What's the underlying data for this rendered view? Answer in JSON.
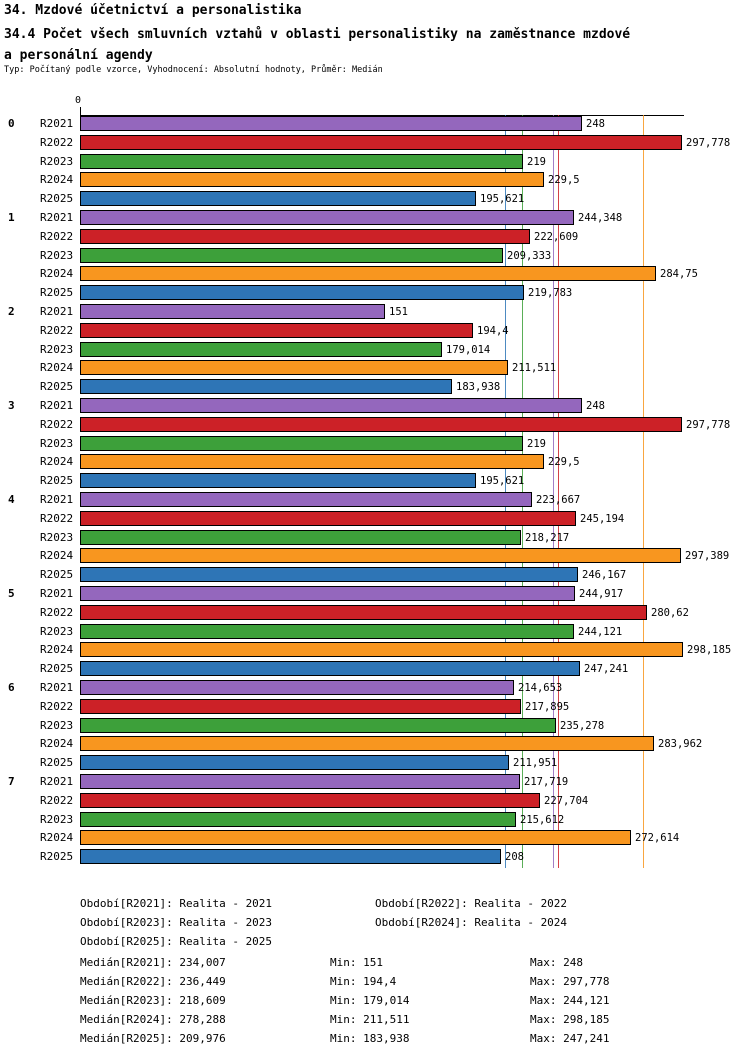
{
  "chart_data": {
    "type": "bar",
    "orientation": "horizontal",
    "title": "34. Mzdové účetnictví a personalistika",
    "subtitle": "34.4 Počet všech smluvních vztahů v oblasti personalistiky na zaměstnance mzdové a personální agendy",
    "meta": "Typ: Počítaný podle vzorce, Vyhodnocení: Absolutní hodnoty, Průměr: Medián",
    "x_axis": {
      "origin_tick_label": "0",
      "min": 0
    },
    "xlim": [
      0,
      300
    ],
    "grid": false,
    "legend_position": "bottom",
    "series": [
      {
        "name": "R2021",
        "color": "#9467bd",
        "median": 234.007,
        "legend": "Období[R2021]: Realita - 2021",
        "median_display": "Medián[R2021]: 234,007",
        "min_display": "Min: 151",
        "max_display": "Max: 248"
      },
      {
        "name": "R2022",
        "color": "#cc2127",
        "median": 236.449,
        "legend": "Období[R2022]: Realita - 2022",
        "median_display": "Medián[R2022]: 236,449",
        "min_display": "Min: 194,4",
        "max_display": "Max: 297,778"
      },
      {
        "name": "R2023",
        "color": "#3da03a",
        "median": 218.609,
        "legend": "Období[R2023]: Realita - 2023",
        "median_display": "Medián[R2023]: 218,609",
        "min_display": "Min: 179,014",
        "max_display": "Max: 244,121"
      },
      {
        "name": "R2024",
        "color": "#f8961f",
        "median": 278.288,
        "legend": "Období[R2024]: Realita - 2024",
        "median_display": "Medián[R2024]: 278,288",
        "min_display": "Min: 211,511",
        "max_display": "Max: 298,185"
      },
      {
        "name": "R2025",
        "color": "#2e75b6",
        "median": 209.976,
        "legend": "Období[R2025]: Realita - 2025",
        "median_display": "Medián[R2025]: 209,976",
        "min_display": "Min: 183,938",
        "max_display": "Max: 247,241"
      }
    ],
    "groups": [
      {
        "label": "0",
        "bars": [
          {
            "series": "R2021",
            "value": 248,
            "display": "248"
          },
          {
            "series": "R2022",
            "value": 297.778,
            "display": "297,778"
          },
          {
            "series": "R2023",
            "value": 219,
            "display": "219"
          },
          {
            "series": "R2024",
            "value": 229.5,
            "display": "229,5"
          },
          {
            "series": "R2025",
            "value": 195.621,
            "display": "195,621"
          }
        ]
      },
      {
        "label": "1",
        "bars": [
          {
            "series": "R2021",
            "value": 244.348,
            "display": "244,348"
          },
          {
            "series": "R2022",
            "value": 222.609,
            "display": "222,609"
          },
          {
            "series": "R2023",
            "value": 209.333,
            "display": "209,333"
          },
          {
            "series": "R2024",
            "value": 284.75,
            "display": "284,75"
          },
          {
            "series": "R2025",
            "value": 219.783,
            "display": "219,783"
          }
        ]
      },
      {
        "label": "2",
        "bars": [
          {
            "series": "R2021",
            "value": 151,
            "display": "151"
          },
          {
            "series": "R2022",
            "value": 194.4,
            "display": "194,4"
          },
          {
            "series": "R2023",
            "value": 179.014,
            "display": "179,014"
          },
          {
            "series": "R2024",
            "value": 211.511,
            "display": "211,511"
          },
          {
            "series": "R2025",
            "value": 183.938,
            "display": "183,938"
          }
        ]
      },
      {
        "label": "3",
        "bars": [
          {
            "series": "R2021",
            "value": 248,
            "display": "248"
          },
          {
            "series": "R2022",
            "value": 297.778,
            "display": "297,778"
          },
          {
            "series": "R2023",
            "value": 219,
            "display": "219"
          },
          {
            "series": "R2024",
            "value": 229.5,
            "display": "229,5"
          },
          {
            "series": "R2025",
            "value": 195.621,
            "display": "195,621"
          }
        ]
      },
      {
        "label": "4",
        "bars": [
          {
            "series": "R2021",
            "value": 223.667,
            "display": "223,667"
          },
          {
            "series": "R2022",
            "value": 245.194,
            "display": "245,194"
          },
          {
            "series": "R2023",
            "value": 218.217,
            "display": "218,217"
          },
          {
            "series": "R2024",
            "value": 297.389,
            "display": "297,389"
          },
          {
            "series": "R2025",
            "value": 246.167,
            "display": "246,167"
          }
        ]
      },
      {
        "label": "5",
        "bars": [
          {
            "series": "R2021",
            "value": 244.917,
            "display": "244,917"
          },
          {
            "series": "R2022",
            "value": 280.62,
            "display": "280,62"
          },
          {
            "series": "R2023",
            "value": 244.121,
            "display": "244,121"
          },
          {
            "series": "R2024",
            "value": 298.185,
            "display": "298,185"
          },
          {
            "series": "R2025",
            "value": 247.241,
            "display": "247,241"
          }
        ]
      },
      {
        "label": "6",
        "bars": [
          {
            "series": "R2021",
            "value": 214.653,
            "display": "214,653"
          },
          {
            "series": "R2022",
            "value": 217.895,
            "display": "217,895"
          },
          {
            "series": "R2023",
            "value": 235.278,
            "display": "235,278"
          },
          {
            "series": "R2024",
            "value": 283.962,
            "display": "283,962"
          },
          {
            "series": "R2025",
            "value": 211.951,
            "display": "211,951"
          }
        ]
      },
      {
        "label": "7",
        "bars": [
          {
            "series": "R2021",
            "value": 217.719,
            "display": "217,719"
          },
          {
            "series": "R2022",
            "value": 227.704,
            "display": "227,704"
          },
          {
            "series": "R2023",
            "value": 215.612,
            "display": "215,612"
          },
          {
            "series": "R2024",
            "value": 272.614,
            "display": "272,614"
          },
          {
            "series": "R2025",
            "value": 208,
            "display": "208"
          }
        ]
      }
    ]
  }
}
